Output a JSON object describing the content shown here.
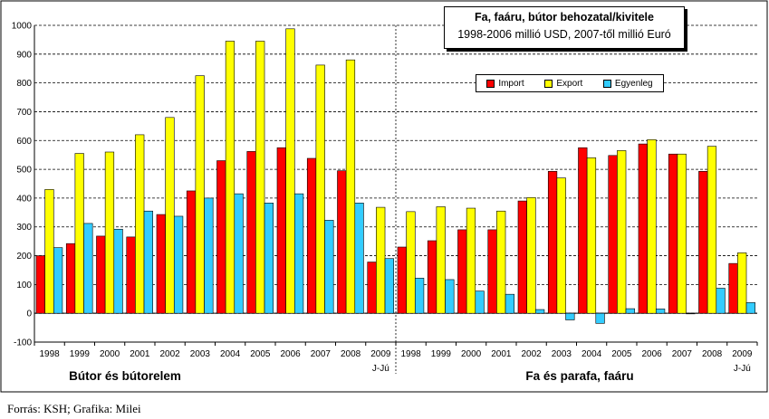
{
  "title": "Fa, faáru, bútor behozatal/kivitele",
  "subtitle": "1998-2006 millió USD, 2007-től millió Euró",
  "source": "Forrás: KSH; Grafika: Milei",
  "chart_data": {
    "type": "bar",
    "ylim": [
      -100,
      1000
    ],
    "yticks": [
      -100,
      0,
      100,
      200,
      300,
      400,
      500,
      600,
      700,
      800,
      900,
      1000
    ],
    "grid": true,
    "legend_position": "top-right",
    "series": [
      {
        "name": "Import",
        "color": "#ff0000"
      },
      {
        "name": "Export",
        "color": "#ffff00"
      },
      {
        "name": "Egyenleg",
        "color": "#33ccff"
      }
    ],
    "groups": [
      {
        "name": "Bútor és bútorelem",
        "categories": [
          "1998",
          "1999",
          "2000",
          "2001",
          "2002",
          "2003",
          "2004",
          "2005",
          "2006",
          "2007",
          "2008",
          "2009"
        ],
        "subcategory_last": "J-Jú",
        "import": [
          200,
          242,
          268,
          265,
          343,
          425,
          530,
          562,
          575,
          538,
          495,
          178
        ],
        "export": [
          430,
          555,
          560,
          620,
          680,
          825,
          945,
          945,
          988,
          862,
          880,
          368
        ],
        "egyenleg": [
          228,
          312,
          292,
          355,
          337,
          400,
          415,
          383,
          415,
          323,
          383,
          190
        ]
      },
      {
        "name": "Fa és parafa, faáru",
        "categories": [
          "1998",
          "1999",
          "2000",
          "2001",
          "2002",
          "2003",
          "2004",
          "2005",
          "2006",
          "2007",
          "2008",
          "2009"
        ],
        "subcategory_last": "J-Jú",
        "import": [
          230,
          252,
          290,
          290,
          390,
          493,
          575,
          548,
          588,
          553,
          493,
          173
        ],
        "export": [
          353,
          370,
          365,
          355,
          402,
          470,
          540,
          565,
          603,
          553,
          580,
          210
        ],
        "egyenleg": [
          122,
          117,
          77,
          66,
          13,
          -23,
          -35,
          16,
          15,
          -2,
          87,
          37
        ]
      }
    ]
  }
}
